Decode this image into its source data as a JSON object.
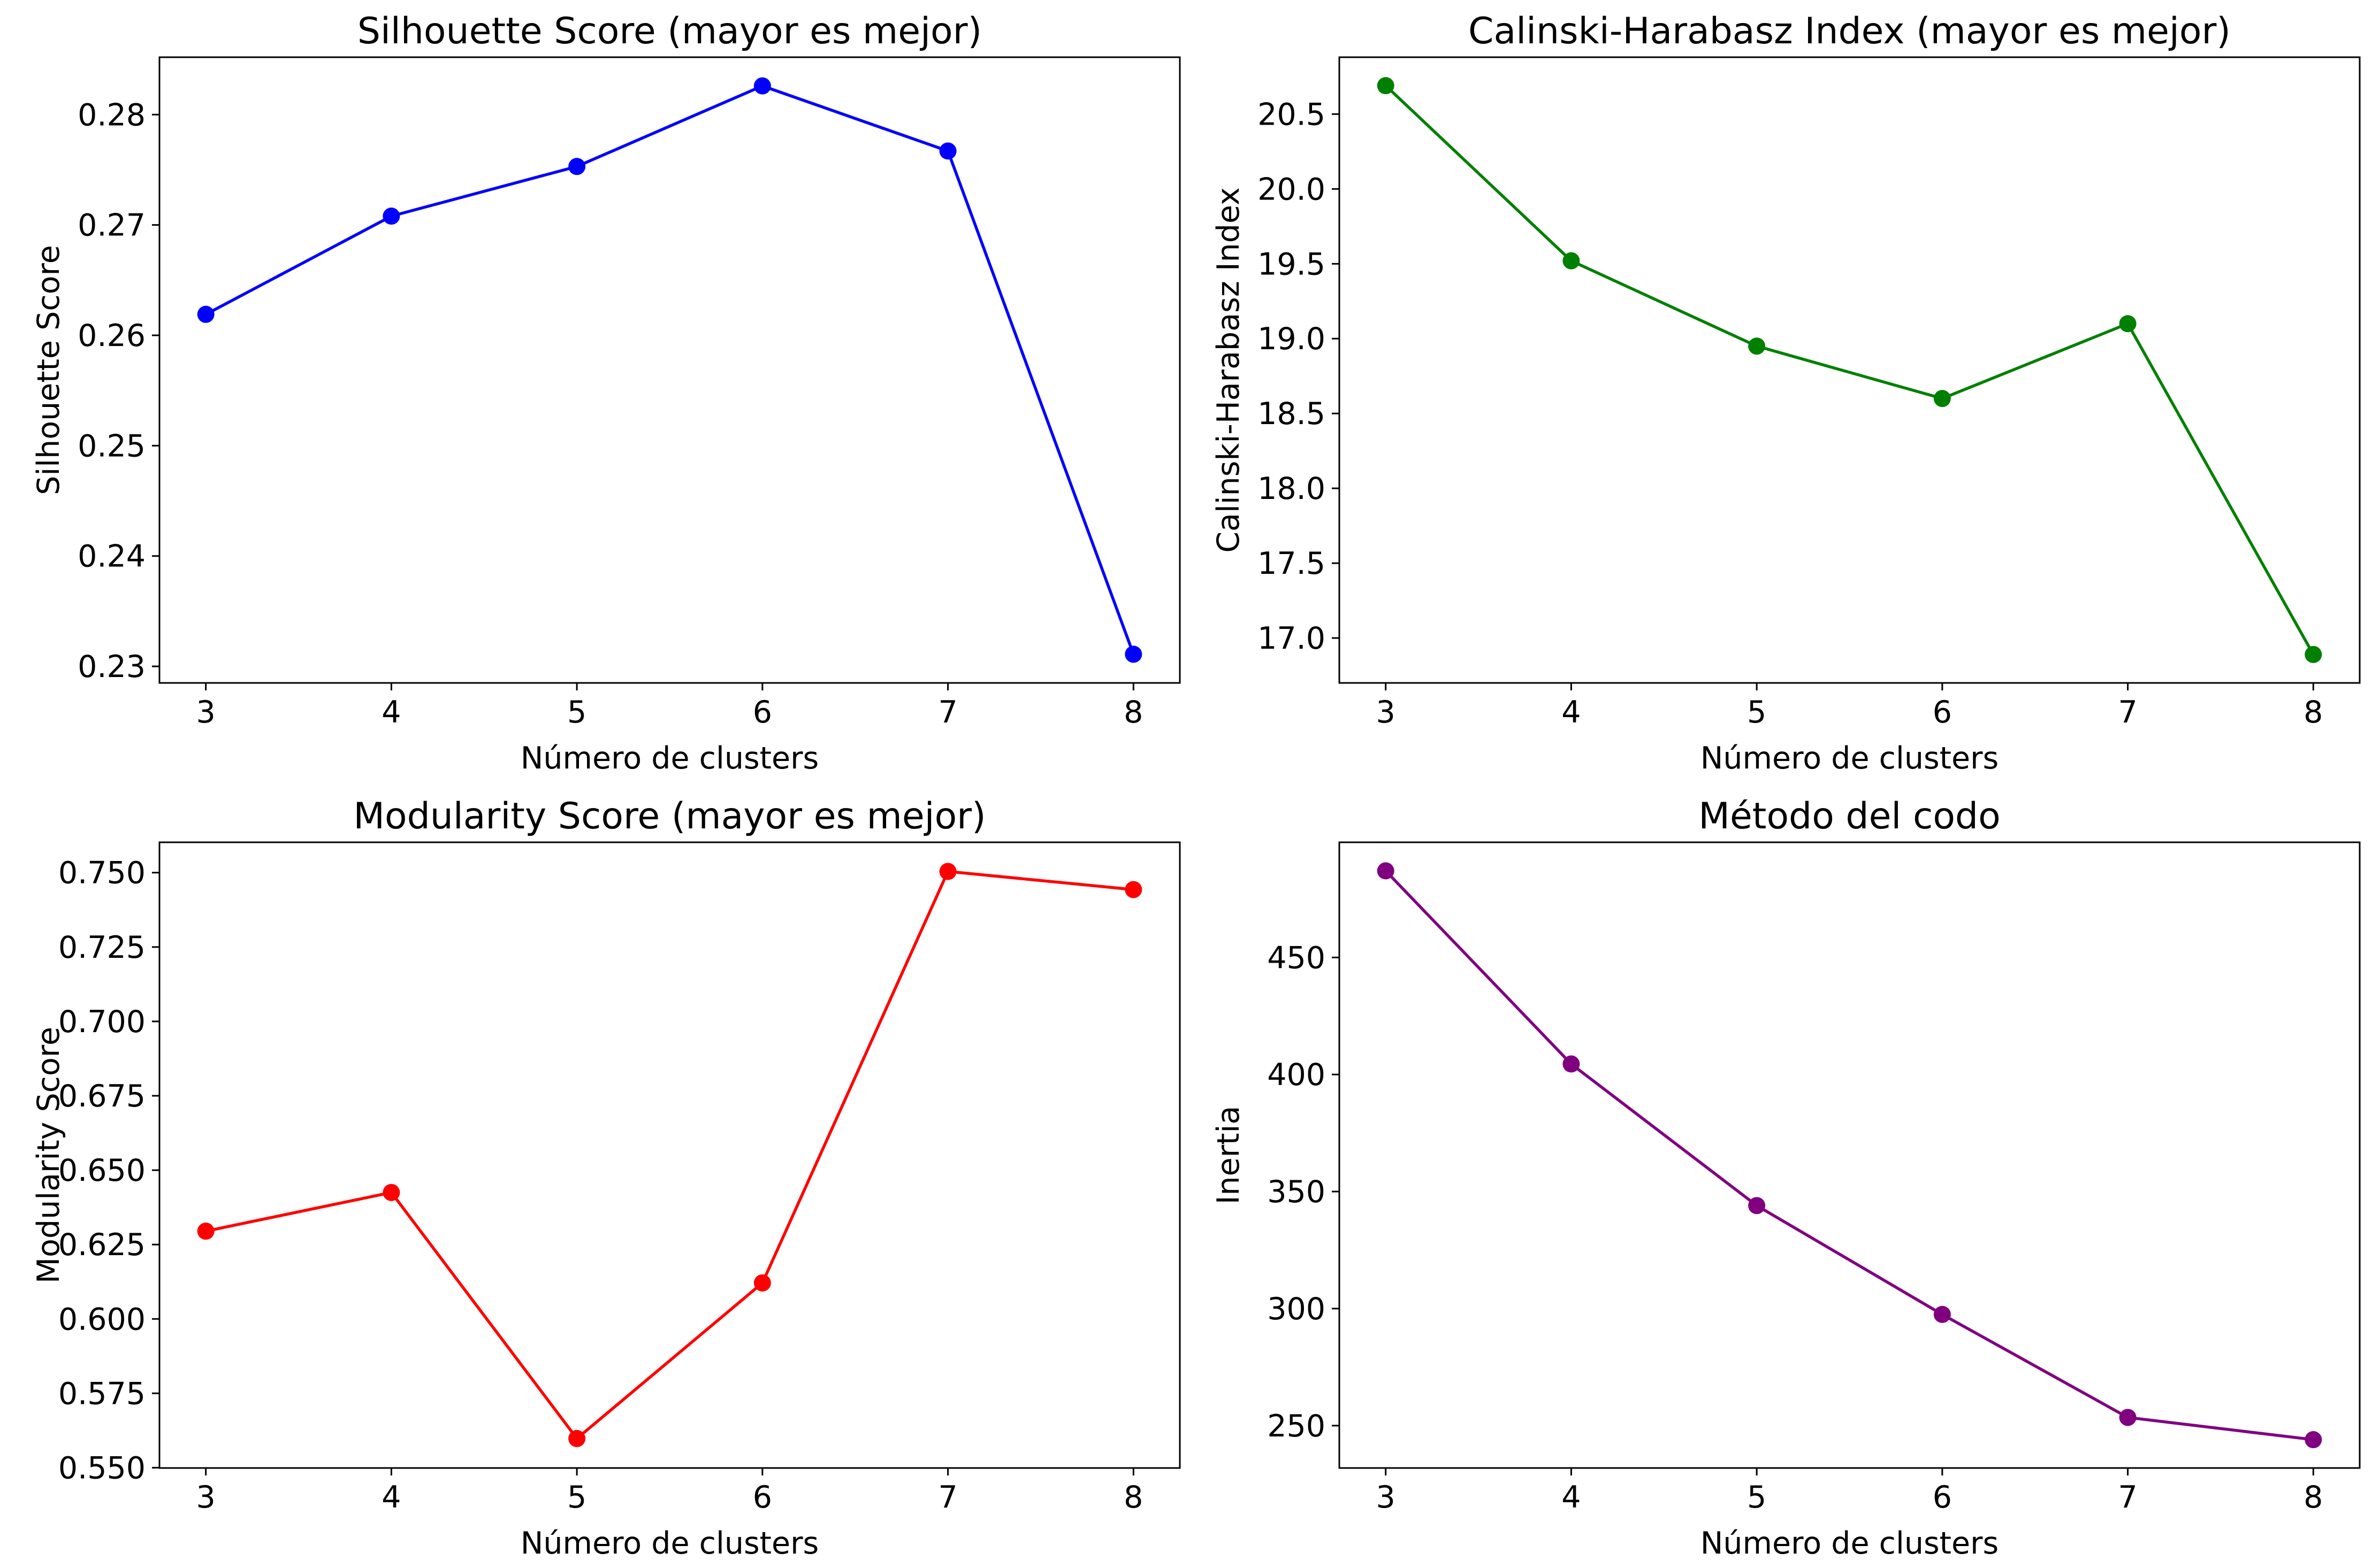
{
  "chart_data": [
    {
      "type": "line",
      "title": "Silhouette Score (mayor es mejor)",
      "xlabel": "Número de clusters",
      "ylabel": "Silhouette Score",
      "x": [
        3,
        4,
        5,
        6,
        7,
        8
      ],
      "series": [
        {
          "values": [
            0.2619,
            0.2708,
            0.2753,
            0.2826,
            0.2767,
            0.2311
          ],
          "color": "#0000ff",
          "marker": "circle"
        }
      ],
      "xticks": [
        3,
        4,
        5,
        6,
        7,
        8
      ],
      "xtick_labels": [
        "3",
        "4",
        "5",
        "6",
        "7",
        "8"
      ],
      "yticks": [
        0.23,
        0.24,
        0.25,
        0.26,
        0.27,
        0.28
      ],
      "ytick_labels": [
        "0.23",
        "0.24",
        "0.25",
        "0.26",
        "0.27",
        "0.28"
      ],
      "xlim": [
        2.75,
        8.25
      ],
      "ylim": [
        0.2285,
        0.2852
      ],
      "grid": false,
      "legend": "none"
    },
    {
      "type": "line",
      "title": "Calinski-Harabasz Index (mayor es mejor)",
      "xlabel": "Número de clusters",
      "ylabel": "Calinski-Harabasz Index",
      "x": [
        3,
        4,
        5,
        6,
        7,
        8
      ],
      "series": [
        {
          "values": [
            20.69,
            19.52,
            18.95,
            18.6,
            19.1,
            16.89
          ],
          "color": "#008000",
          "marker": "circle"
        }
      ],
      "xticks": [
        3,
        4,
        5,
        6,
        7,
        8
      ],
      "xtick_labels": [
        "3",
        "4",
        "5",
        "6",
        "7",
        "8"
      ],
      "yticks": [
        17.0,
        17.5,
        18.0,
        18.5,
        19.0,
        19.5,
        20.0,
        20.5
      ],
      "ytick_labels": [
        "17.0",
        "17.5",
        "18.0",
        "18.5",
        "19.0",
        "19.5",
        "20.0",
        "20.5"
      ],
      "xlim": [
        2.75,
        8.25
      ],
      "ylim": [
        16.7,
        20.88
      ],
      "grid": false,
      "legend": "none"
    },
    {
      "type": "line",
      "title": "Modularity Score (mayor es mejor)",
      "xlabel": "Número de clusters",
      "ylabel": "Modularity Score",
      "x": [
        3,
        4,
        5,
        6,
        7,
        8
      ],
      "series": [
        {
          "values": [
            0.6295,
            0.6425,
            0.5598,
            0.6121,
            0.7504,
            0.7443
          ],
          "color": "#ff0000",
          "marker": "circle"
        }
      ],
      "xticks": [
        3,
        4,
        5,
        6,
        7,
        8
      ],
      "xtick_labels": [
        "3",
        "4",
        "5",
        "6",
        "7",
        "8"
      ],
      "yticks": [
        0.55,
        0.575,
        0.6,
        0.625,
        0.65,
        0.675,
        0.7,
        0.725,
        0.75
      ],
      "ytick_labels": [
        "0.550",
        "0.575",
        "0.600",
        "0.625",
        "0.650",
        "0.675",
        "0.700",
        "0.725",
        "0.750"
      ],
      "xlim": [
        2.75,
        8.25
      ],
      "ylim": [
        0.5499,
        0.7602
      ],
      "grid": false,
      "legend": "none"
    },
    {
      "type": "line",
      "title": "Método del codo",
      "xlabel": "Número de clusters",
      "ylabel": "Inertia",
      "x": [
        3,
        4,
        5,
        6,
        7,
        8
      ],
      "series": [
        {
          "values": [
            487.0,
            404.5,
            344.0,
            297.5,
            253.5,
            244.0
          ],
          "color": "#800080",
          "marker": "circle"
        }
      ],
      "xticks": [
        3,
        4,
        5,
        6,
        7,
        8
      ],
      "xtick_labels": [
        "3",
        "4",
        "5",
        "6",
        "7",
        "8"
      ],
      "yticks": [
        250,
        300,
        350,
        400,
        450
      ],
      "ytick_labels": [
        "250",
        "300",
        "350",
        "400",
        "450"
      ],
      "xlim": [
        2.75,
        8.25
      ],
      "ylim": [
        231.9,
        499.2
      ],
      "grid": false,
      "legend": "none"
    }
  ]
}
